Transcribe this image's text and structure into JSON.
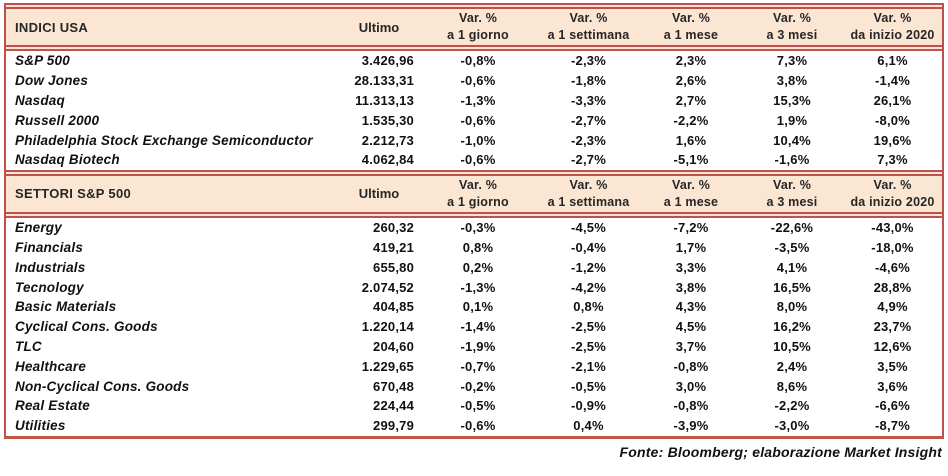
{
  "columns": {
    "ultimo": "Ultimo",
    "var_label": "Var. %",
    "periods": [
      "a 1 giorno",
      "a 1 settimana",
      "a 1 mese",
      "a 3 mesi",
      "da inizio 2020"
    ]
  },
  "sections": [
    {
      "title": "INDICI USA",
      "rows": [
        {
          "name": "S&P 500",
          "ultimo": "3.426,96",
          "vars": [
            "-0,8%",
            "-2,3%",
            "2,3%",
            "7,3%",
            "6,1%"
          ]
        },
        {
          "name": "Dow Jones",
          "ultimo": "28.133,31",
          "vars": [
            "-0,6%",
            "-1,8%",
            "2,6%",
            "3,8%",
            "-1,4%"
          ]
        },
        {
          "name": "Nasdaq",
          "ultimo": "11.313,13",
          "vars": [
            "-1,3%",
            "-3,3%",
            "2,7%",
            "15,3%",
            "26,1%"
          ]
        },
        {
          "name": "Russell 2000",
          "ultimo": "1.535,30",
          "vars": [
            "-0,6%",
            "-2,7%",
            "-2,2%",
            "1,9%",
            "-8,0%"
          ]
        },
        {
          "name": "Philadelphia Stock Exchange Semiconductor",
          "ultimo": "2.212,73",
          "vars": [
            "-1,0%",
            "-2,3%",
            "1,6%",
            "10,4%",
            "19,6%"
          ]
        },
        {
          "name": "Nasdaq Biotech",
          "ultimo": "4.062,84",
          "vars": [
            "-0,6%",
            "-2,7%",
            "-5,1%",
            "-1,6%",
            "7,3%"
          ]
        }
      ]
    },
    {
      "title": "SETTORI S&P 500",
      "rows": [
        {
          "name": "Energy",
          "ultimo": "260,32",
          "vars": [
            "-0,3%",
            "-4,5%",
            "-7,2%",
            "-22,6%",
            "-43,0%"
          ]
        },
        {
          "name": "Financials",
          "ultimo": "419,21",
          "vars": [
            "0,8%",
            "-0,4%",
            "1,7%",
            "-3,5%",
            "-18,0%"
          ]
        },
        {
          "name": "Industrials",
          "ultimo": "655,80",
          "vars": [
            "0,2%",
            "-1,2%",
            "3,3%",
            "4,1%",
            "-4,6%"
          ]
        },
        {
          "name": "Tecnology",
          "ultimo": "2.074,52",
          "vars": [
            "-1,3%",
            "-4,2%",
            "3,8%",
            "16,5%",
            "28,8%"
          ]
        },
        {
          "name": "Basic Materials",
          "ultimo": "404,85",
          "vars": [
            "0,1%",
            "0,8%",
            "4,3%",
            "8,0%",
            "4,9%"
          ]
        },
        {
          "name": "Cyclical Cons. Goods",
          "ultimo": "1.220,14",
          "vars": [
            "-1,4%",
            "-2,5%",
            "4,5%",
            "16,2%",
            "23,7%"
          ]
        },
        {
          "name": "TLC",
          "ultimo": "204,60",
          "vars": [
            "-1,9%",
            "-2,5%",
            "3,7%",
            "10,5%",
            "12,6%"
          ]
        },
        {
          "name": "Healthcare",
          "ultimo": "1.229,65",
          "vars": [
            "-0,7%",
            "-2,1%",
            "-0,8%",
            "2,4%",
            "3,5%"
          ]
        },
        {
          "name": "Non-Cyclical Cons. Goods",
          "ultimo": "670,48",
          "vars": [
            "-0,2%",
            "-0,5%",
            "3,0%",
            "8,6%",
            "3,6%"
          ]
        },
        {
          "name": "Real Estate",
          "ultimo": "224,44",
          "vars": [
            "-0,5%",
            "-0,9%",
            "-0,8%",
            "-2,2%",
            "-6,6%"
          ]
        },
        {
          "name": "Utilities",
          "ultimo": "299,79",
          "vars": [
            "-0,6%",
            "0,4%",
            "-3,9%",
            "-3,0%",
            "-8,7%"
          ]
        }
      ]
    }
  ],
  "footer": "Fonte: Bloomberg; elaborazione Market Insight",
  "colors": {
    "header_background": "#fbe5d3",
    "border_red": "#c0504d",
    "bottom_rule": "#c25844",
    "text": "#111111"
  }
}
